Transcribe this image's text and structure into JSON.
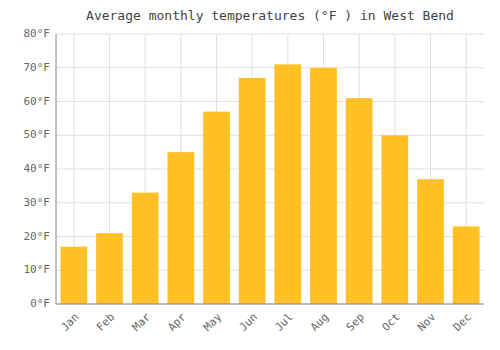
{
  "chart_data": {
    "type": "bar",
    "title": "Average monthly temperatures (°F ) in West Bend",
    "categories": [
      "Jan",
      "Feb",
      "Mar",
      "Apr",
      "May",
      "Jun",
      "Jul",
      "Aug",
      "Sep",
      "Oct",
      "Nov",
      "Dec"
    ],
    "values": [
      17,
      21,
      33,
      45,
      57,
      67,
      71,
      70,
      61,
      50,
      37,
      23
    ],
    "color": "#FFC125",
    "ylim": [
      0,
      80
    ],
    "yticks": [
      {
        "value": 0,
        "label": "0°F"
      },
      {
        "value": 10,
        "label": "10°F"
      },
      {
        "value": 20,
        "label": "20°F"
      },
      {
        "value": 30,
        "label": "30°F"
      },
      {
        "value": 40,
        "label": "40°F"
      },
      {
        "value": 50,
        "label": "50°F"
      },
      {
        "value": 60,
        "label": "60°F"
      },
      {
        "value": 70,
        "label": "70°F"
      },
      {
        "value": 80,
        "label": "80°F"
      }
    ],
    "grid": true
  }
}
